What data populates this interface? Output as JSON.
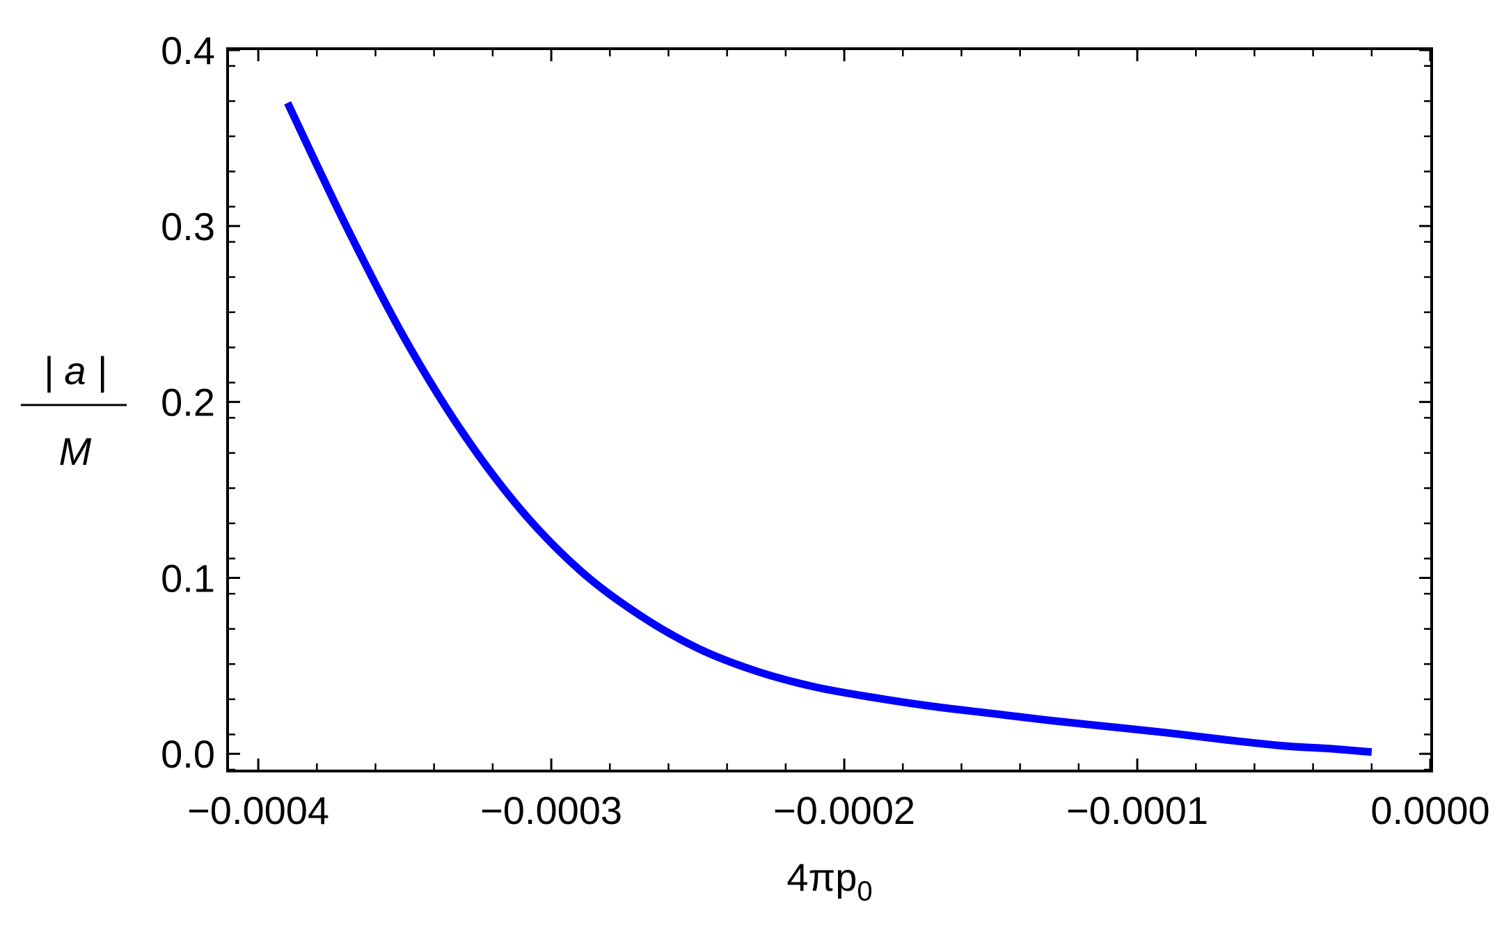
{
  "chart_data": {
    "type": "line",
    "xlabel": {
      "main": "4πp",
      "sub": "0"
    },
    "ylabel": {
      "numerator": "| a |",
      "denominator": "M"
    },
    "xlim": [
      -0.00041,
      0.0
    ],
    "ylim": [
      -0.009,
      0.4
    ],
    "xticks": [
      -0.0004,
      -0.0003,
      -0.0002,
      -0.0001,
      0.0
    ],
    "xtick_labels": [
      "−0.0004",
      "−0.0003",
      "−0.0002",
      "−0.0001",
      "0.0000"
    ],
    "yticks": [
      0.0,
      0.1,
      0.2,
      0.3,
      0.4
    ],
    "ytick_labels": [
      "0.0",
      "0.1",
      "0.2",
      "0.3",
      "0.4"
    ],
    "grid": false,
    "series": [
      {
        "color": "#0000ff",
        "x": [
          -0.00039,
          -0.00037,
          -0.00035,
          -0.00033,
          -0.00031,
          -0.00029,
          -0.00027,
          -0.00025,
          -0.00023,
          -0.00021,
          -0.00019,
          -0.00017,
          -0.00015,
          -0.00013,
          -0.00011,
          -9e-05,
          -7e-05,
          -5e-05,
          -3.5e-05,
          -2e-05
        ],
        "y": [
          0.37,
          0.3,
          0.236,
          0.182,
          0.138,
          0.104,
          0.079,
          0.06,
          0.047,
          0.038,
          0.032,
          0.027,
          0.023,
          0.019,
          0.0155,
          0.012,
          0.008,
          0.0045,
          0.003,
          0.001
        ]
      }
    ]
  }
}
